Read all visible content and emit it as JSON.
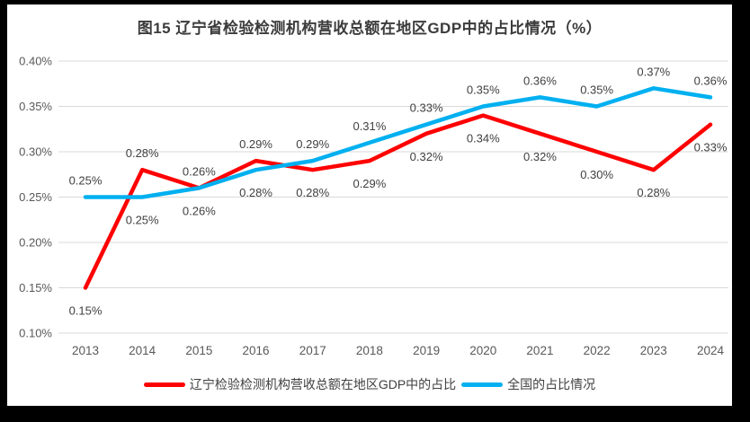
{
  "frame": {
    "background_color": "#000000",
    "chart_background_color": "#ffffff"
  },
  "chart_data": {
    "type": "line",
    "title": "图15 辽宁省检验检测机构营收总额在地区GDP中的占比情况（%）",
    "categories": [
      "2013",
      "2014",
      "2015",
      "2016",
      "2017",
      "2018",
      "2019",
      "2020",
      "2021",
      "2022",
      "2023",
      "2024"
    ],
    "series": [
      {
        "name": "辽宁检验检测机构营收总额在地区GDP中的占比",
        "color": "#ff0000",
        "values": [
          0.15,
          0.28,
          0.26,
          0.29,
          0.28,
          0.29,
          0.32,
          0.34,
          0.32,
          0.3,
          0.28,
          0.33
        ],
        "point_labels": [
          "0.15%",
          "0.28%",
          "0.26%",
          "0.29%",
          "0.28%",
          "0.29%",
          "0.32%",
          "0.34%",
          "0.32%",
          "0.30%",
          "0.28%",
          "0.33%"
        ]
      },
      {
        "name": "全国的占比情况",
        "color": "#00b0f0",
        "values": [
          0.25,
          0.25,
          0.26,
          0.28,
          0.29,
          0.31,
          0.33,
          0.35,
          0.36,
          0.35,
          0.37,
          0.36
        ],
        "point_labels": [
          "0.25%",
          "0.25%",
          "0.26%",
          "0.28%",
          "0.29%",
          "0.31%",
          "0.33%",
          "0.35%",
          "0.36%",
          "0.35%",
          "0.37%",
          "0.36%"
        ]
      }
    ],
    "xlabel": "",
    "ylabel": "",
    "ylim": [
      0.1,
      0.4
    ],
    "ytick_step": 0.05,
    "ytick_labels": [
      "0.10%",
      "0.15%",
      "0.20%",
      "0.25%",
      "0.30%",
      "0.35%",
      "0.40%"
    ],
    "grid": true,
    "gridline_color": "#d9d9d9",
    "axis_text_color": "#595959",
    "data_label_color": "#404040",
    "legend_position": "bottom",
    "value_suffix": "%"
  }
}
